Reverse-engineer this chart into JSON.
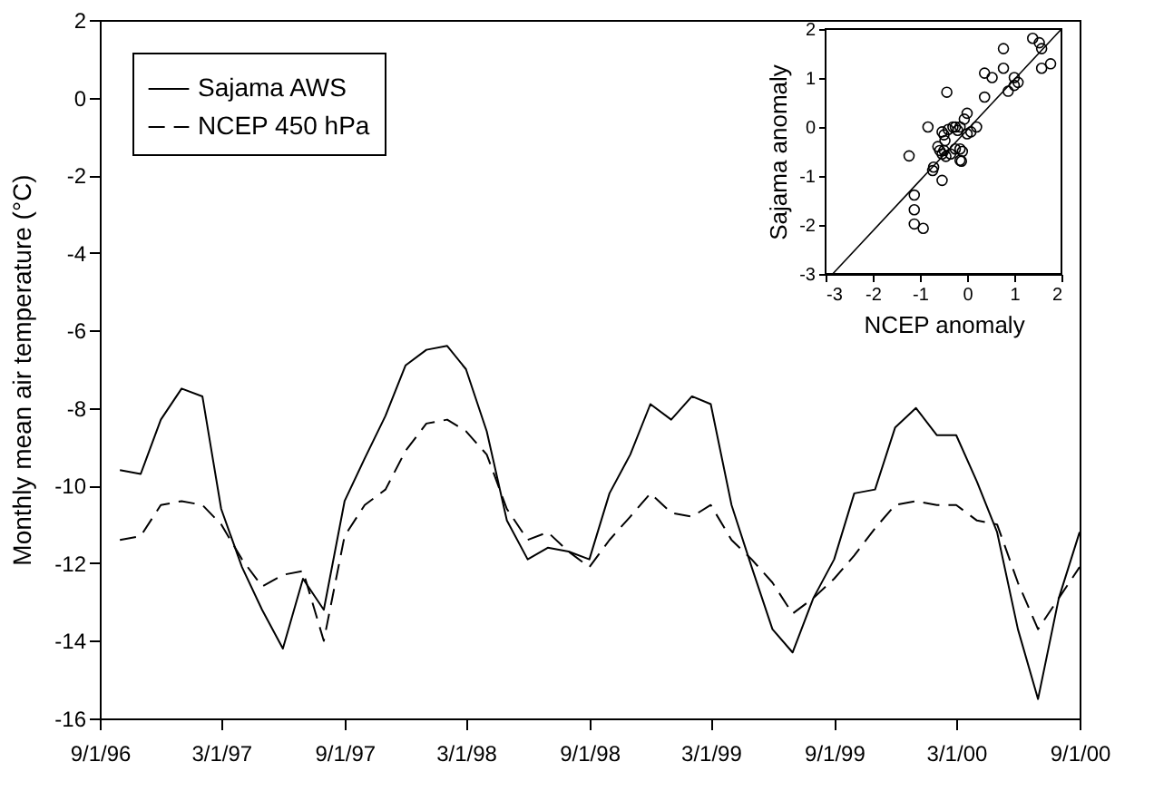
{
  "chart_data": [
    {
      "type": "line",
      "ylabel": "Monthly mean air temperature (°C)",
      "legend": "top left",
      "grid": false,
      "x": [
        "1996-10",
        "1996-11",
        "1996-12",
        "1997-01",
        "1997-02",
        "1997-03",
        "1997-04",
        "1997-05",
        "1997-06",
        "1997-07",
        "1997-08",
        "1997-09",
        "1997-10",
        "1997-11",
        "1997-12",
        "1998-01",
        "1998-02",
        "1998-03",
        "1998-04",
        "1998-05",
        "1998-06",
        "1998-07",
        "1998-08",
        "1998-09",
        "1998-10",
        "1998-11",
        "1998-12",
        "1999-01",
        "1999-02",
        "1999-03",
        "1999-04",
        "1999-05",
        "1999-06",
        "1999-07",
        "1999-08",
        "1999-09",
        "1999-10",
        "1999-11",
        "1999-12",
        "2000-01",
        "2000-02",
        "2000-03",
        "2000-04",
        "2000-05",
        "2000-06",
        "2000-07",
        "2000-08",
        "2000-09"
      ],
      "xlim": [
        "1996-09-01",
        "2000-09-01"
      ],
      "xticks": [
        {
          "value": "1996-09-01",
          "label": "9/1/96"
        },
        {
          "value": "1997-03-01",
          "label": "3/1/97"
        },
        {
          "value": "1997-09-01",
          "label": "9/1/97"
        },
        {
          "value": "1998-03-01",
          "label": "3/1/98"
        },
        {
          "value": "1998-09-01",
          "label": "9/1/98"
        },
        {
          "value": "1999-03-01",
          "label": "3/1/99"
        },
        {
          "value": "1999-09-01",
          "label": "9/1/99"
        },
        {
          "value": "2000-03-01",
          "label": "3/1/00"
        },
        {
          "value": "2000-09-01",
          "label": "9/1/00"
        }
      ],
      "ylim": [
        -16,
        2
      ],
      "yticks": [
        -16,
        -14,
        -12,
        -10,
        -8,
        -6,
        -4,
        -2,
        0,
        2
      ],
      "series": [
        {
          "name": "Sajama AWS",
          "color": "#000000",
          "line_style": "solid",
          "values": [
            -9.6,
            -9.7,
            -8.3,
            -7.5,
            -7.7,
            -10.6,
            -12.1,
            -13.2,
            -14.2,
            -12.4,
            -13.2,
            -10.4,
            -9.3,
            -8.2,
            -6.9,
            -6.5,
            -6.4,
            -7.0,
            -8.6,
            -10.9,
            -11.9,
            -11.6,
            -11.7,
            -11.9,
            -10.2,
            -9.2,
            -7.9,
            -8.3,
            -7.7,
            -7.9,
            -10.5,
            -12.1,
            -13.7,
            -14.3,
            -12.9,
            -11.9,
            -10.2,
            -10.1,
            -8.5,
            -8.0,
            -8.7,
            -8.7,
            -9.9,
            -11.2,
            -13.7,
            -15.5,
            -12.9,
            -11.2
          ]
        },
        {
          "name": "NCEP 450 hPa",
          "color": "#000000",
          "line_style": "dashed",
          "values": [
            -11.4,
            -11.3,
            -10.5,
            -10.4,
            -10.5,
            -11.0,
            -11.9,
            -12.6,
            -12.3,
            -12.2,
            -14.0,
            -11.3,
            -10.5,
            -10.1,
            -9.1,
            -8.4,
            -8.3,
            -8.6,
            -9.2,
            -10.6,
            -11.4,
            -11.2,
            -11.7,
            -12.1,
            -11.4,
            -10.8,
            -10.2,
            -10.7,
            -10.8,
            -10.5,
            -11.4,
            -11.9,
            -12.5,
            -13.3,
            -12.9,
            -12.4,
            -11.8,
            -11.1,
            -10.5,
            -10.4,
            -10.5,
            -10.5,
            -10.9,
            -11.0,
            -12.5,
            -13.7,
            -12.9,
            -12.1
          ]
        }
      ]
    },
    {
      "type": "scatter",
      "xlabel": "NCEP anomaly",
      "ylabel": "Sajama anomaly",
      "grid": false,
      "xlim": [
        -3,
        2
      ],
      "ylim": [
        -3,
        2
      ],
      "xticks": [
        -3,
        -2,
        -1,
        0,
        1,
        2
      ],
      "yticks": [
        -3,
        -2,
        -1,
        0,
        1,
        2
      ],
      "series": [
        {
          "type": "scatter",
          "marker": "circle",
          "color": "#000000",
          "x": [
            -1.23,
            -1.12,
            -1.12,
            -1.12,
            -0.93,
            -0.83,
            -0.43,
            -0.53,
            -0.71,
            -0.73,
            -0.62,
            -0.58,
            -0.53,
            -0.49,
            -0.47,
            -0.53,
            -0.49,
            -0.4,
            -0.3,
            -0.25,
            -0.2,
            -0.15,
            -0.06,
            0.0,
            -0.15,
            -0.12,
            -0.25,
            -0.15,
            0.0,
            0.08,
            0.2,
            0.37,
            0.37,
            0.53,
            0.77,
            0.77,
            0.87,
            1.0,
            1.08,
            1.0,
            1.39,
            1.53,
            1.58,
            1.58,
            1.77,
            -0.45,
            -0.35,
            -0.1
          ],
          "values": [
            -0.59,
            -1.39,
            -1.69,
            -1.98,
            -2.07,
            0.0,
            0.71,
            -1.09,
            -0.82,
            -0.89,
            -0.4,
            -0.48,
            -0.55,
            -0.48,
            -0.28,
            -0.1,
            -0.16,
            -0.05,
            0.0,
            0.0,
            -0.07,
            0.0,
            0.16,
            0.28,
            -0.68,
            -0.7,
            -0.45,
            -0.45,
            -0.14,
            -0.1,
            0.0,
            0.61,
            1.1,
            1.01,
            1.6,
            1.2,
            0.73,
            0.85,
            0.91,
            1.01,
            1.81,
            1.72,
            1.6,
            1.2,
            1.29,
            -0.6,
            -0.55,
            -0.5
          ]
        },
        {
          "type": "line",
          "color": "#000000",
          "line_style": "solid",
          "x": [
            -2.85,
            2.0
          ],
          "values": [
            -3,
            2
          ]
        }
      ]
    }
  ]
}
